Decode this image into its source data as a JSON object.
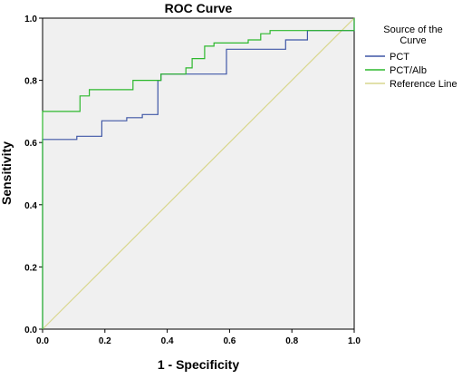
{
  "chart_data": {
    "type": "line",
    "title": "ROC Curve",
    "xlabel": "1 - Specificity",
    "ylabel": "Sensitivity",
    "xlim": [
      0.0,
      1.0
    ],
    "ylim": [
      0.0,
      1.0
    ],
    "x_ticks": [
      "0.0",
      "0.2",
      "0.4",
      "0.6",
      "0.8",
      "1.0"
    ],
    "y_ticks": [
      "0.0",
      "0.2",
      "0.4",
      "0.6",
      "0.8",
      "1.0"
    ],
    "grid": false,
    "plot_background": "#f0f0f0",
    "legend": {
      "title": "Source of the Curve",
      "position": "right"
    },
    "series": [
      {
        "name": "PCT",
        "color": "#3f57a6",
        "step": true,
        "points": [
          [
            0,
            0
          ],
          [
            0,
            0.61
          ],
          [
            0.11,
            0.61
          ],
          [
            0.11,
            0.62
          ],
          [
            0.19,
            0.62
          ],
          [
            0.19,
            0.67
          ],
          [
            0.27,
            0.67
          ],
          [
            0.27,
            0.68
          ],
          [
            0.32,
            0.68
          ],
          [
            0.32,
            0.69
          ],
          [
            0.37,
            0.69
          ],
          [
            0.37,
            0.8
          ],
          [
            0.38,
            0.8
          ],
          [
            0.38,
            0.82
          ],
          [
            0.59,
            0.82
          ],
          [
            0.59,
            0.9
          ],
          [
            0.78,
            0.9
          ],
          [
            0.78,
            0.93
          ],
          [
            0.85,
            0.93
          ],
          [
            0.85,
            0.96
          ],
          [
            1.0,
            0.96
          ],
          [
            1.0,
            1.0
          ]
        ]
      },
      {
        "name": "PCT/Alb",
        "color": "#2db82d",
        "step": true,
        "points": [
          [
            0,
            0
          ],
          [
            0,
            0.7
          ],
          [
            0.12,
            0.7
          ],
          [
            0.12,
            0.75
          ],
          [
            0.15,
            0.75
          ],
          [
            0.15,
            0.77
          ],
          [
            0.29,
            0.77
          ],
          [
            0.29,
            0.8
          ],
          [
            0.38,
            0.8
          ],
          [
            0.38,
            0.82
          ],
          [
            0.46,
            0.82
          ],
          [
            0.46,
            0.84
          ],
          [
            0.48,
            0.84
          ],
          [
            0.48,
            0.87
          ],
          [
            0.52,
            0.87
          ],
          [
            0.52,
            0.91
          ],
          [
            0.55,
            0.91
          ],
          [
            0.55,
            0.92
          ],
          [
            0.66,
            0.92
          ],
          [
            0.66,
            0.93
          ],
          [
            0.7,
            0.93
          ],
          [
            0.7,
            0.95
          ],
          [
            0.73,
            0.95
          ],
          [
            0.73,
            0.96
          ],
          [
            1.0,
            0.96
          ],
          [
            1.0,
            1.0
          ]
        ]
      },
      {
        "name": "Reference Line",
        "color": "#d9d78e",
        "step": false,
        "points": [
          [
            0,
            0
          ],
          [
            1,
            1
          ]
        ]
      }
    ]
  }
}
